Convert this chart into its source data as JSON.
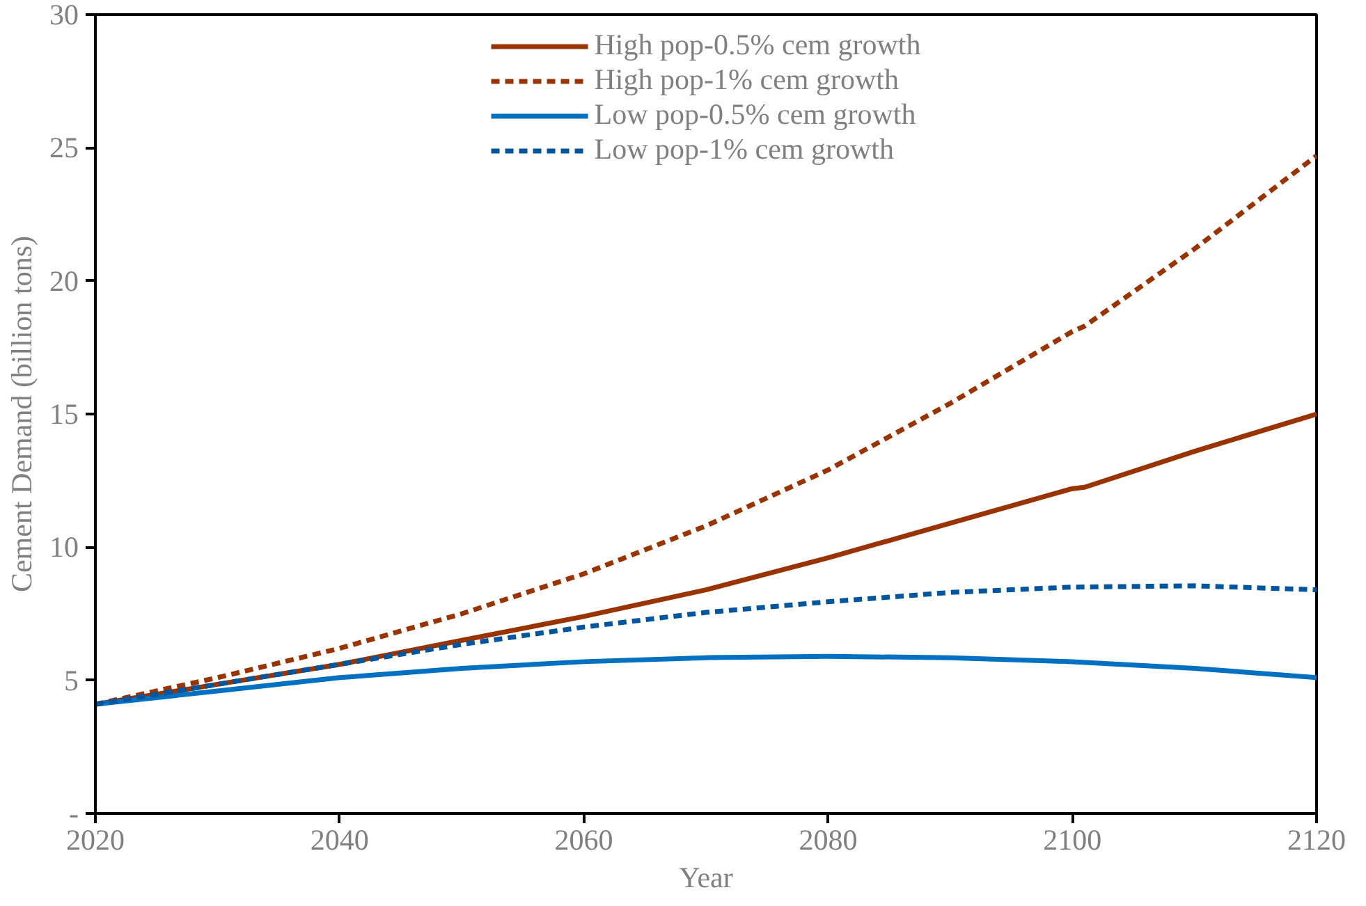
{
  "chart_data": {
    "type": "line",
    "xlabel": "Year",
    "ylabel": "Cement Demand (billion tons)",
    "xlim": [
      2020,
      2120
    ],
    "xticks": [
      2020,
      2040,
      2060,
      2080,
      2100,
      2120
    ],
    "ylim": [
      0,
      30
    ],
    "yticks": [
      {
        "value": 0,
        "label": "-"
      },
      5,
      10,
      15,
      20,
      25,
      30
    ],
    "grid": false,
    "legend": "top",
    "series": [
      {
        "name": "High pop-0.5% cem growth",
        "color": "#993300",
        "line_style": "solid",
        "x": [
          2020,
          2030,
          2040,
          2050,
          2060,
          2070,
          2080,
          2090,
          2100,
          2101,
          2110,
          2120
        ],
        "values": [
          4.1,
          4.85,
          5.6,
          6.5,
          7.4,
          8.4,
          9.6,
          10.9,
          12.2,
          12.25,
          13.6,
          15.0
        ]
      },
      {
        "name": "High pop-1% cem growth",
        "color": "#993300",
        "line_style": "dashed",
        "x": [
          2020,
          2030,
          2040,
          2050,
          2060,
          2070,
          2080,
          2090,
          2100,
          2101,
          2110,
          2120
        ],
        "values": [
          4.1,
          5.1,
          6.2,
          7.5,
          9.0,
          10.8,
          12.9,
          15.4,
          18.1,
          18.3,
          21.2,
          24.7
        ]
      },
      {
        "name": "Low pop-0.5% cem growth",
        "color": "#0070c0",
        "line_style": "solid",
        "x": [
          2020,
          2030,
          2040,
          2050,
          2060,
          2070,
          2080,
          2090,
          2100,
          2110,
          2120
        ],
        "values": [
          4.1,
          4.6,
          5.1,
          5.45,
          5.7,
          5.85,
          5.9,
          5.85,
          5.7,
          5.45,
          5.1
        ]
      },
      {
        "name": "Low pop-1% cem growth",
        "color": "#00569e",
        "line_style": "dashed",
        "x": [
          2020,
          2030,
          2040,
          2050,
          2060,
          2070,
          2080,
          2090,
          2100,
          2110,
          2120
        ],
        "values": [
          4.1,
          4.85,
          5.6,
          6.35,
          7.0,
          7.55,
          7.95,
          8.3,
          8.5,
          8.55,
          8.4
        ]
      }
    ]
  }
}
